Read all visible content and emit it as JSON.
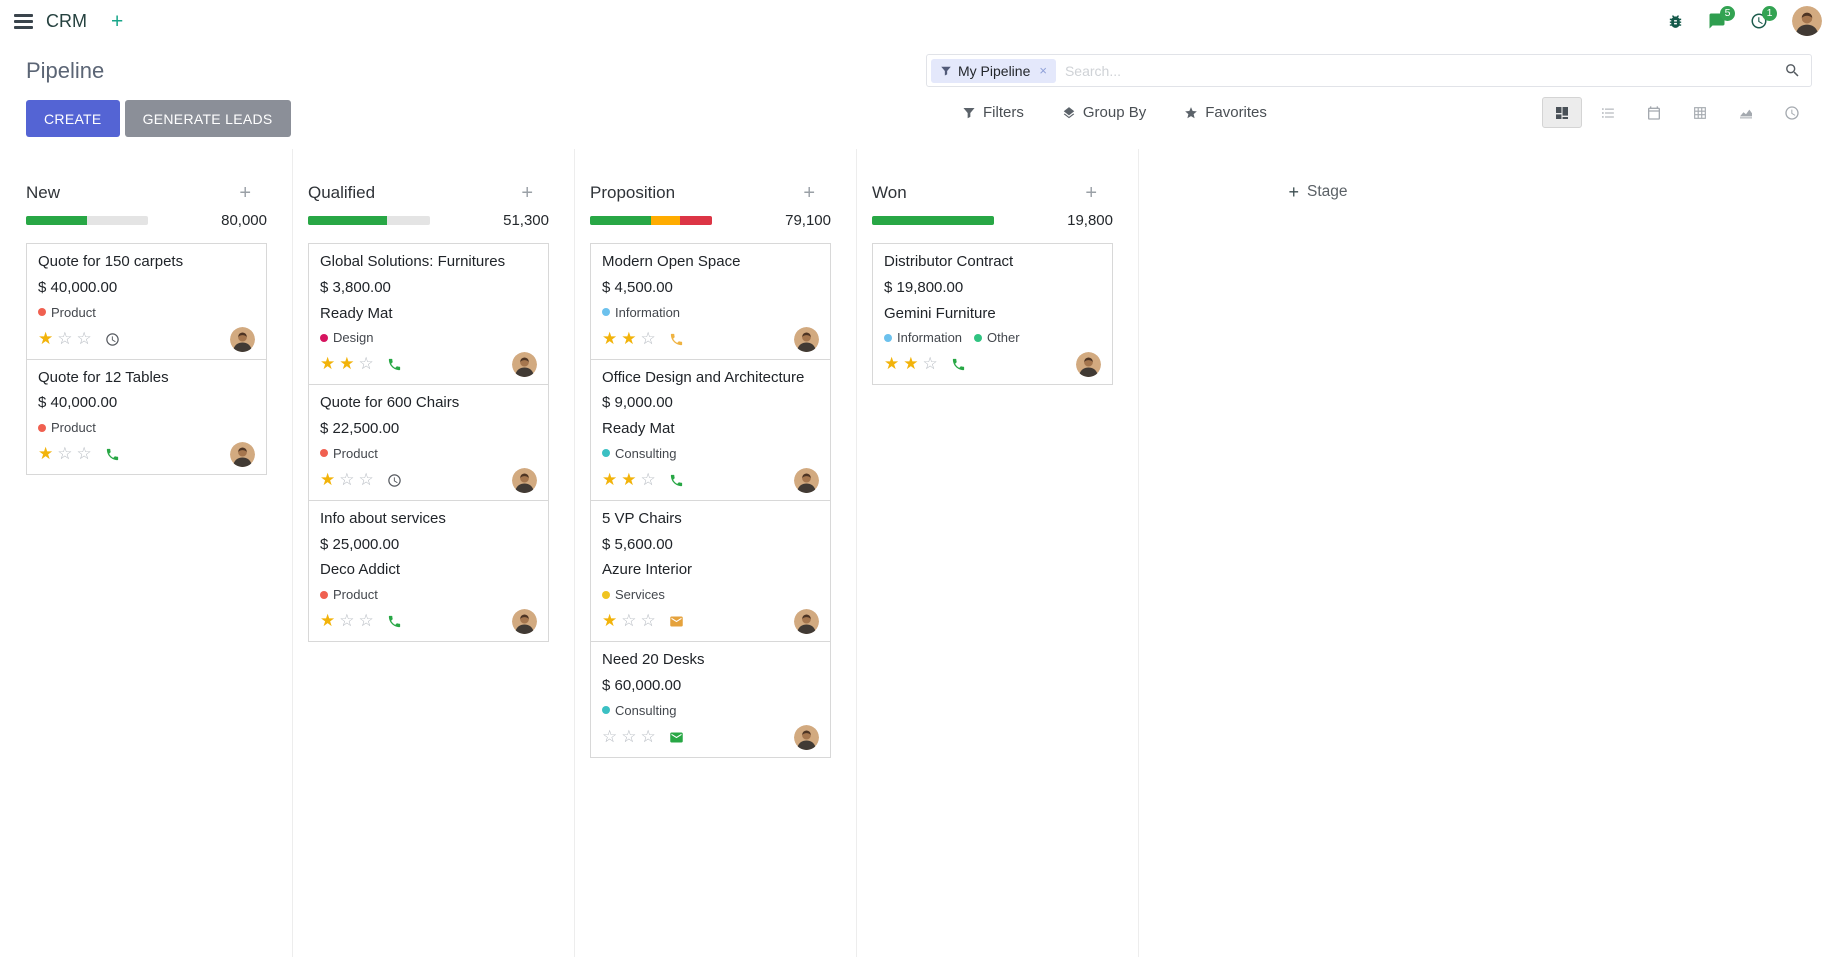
{
  "colors": {
    "primary": "#5464d4",
    "secondary_btn": "#8b8f98",
    "success": "#28a745",
    "star_gold": "#f2b30a",
    "badge_green": "#33a352",
    "facet_bg": "#e4e8fb"
  },
  "app": {
    "name": "CRM"
  },
  "navbar": {
    "messages_badge": "5",
    "activities_badge": "1"
  },
  "control_panel": {
    "title": "Pipeline",
    "create_button": "CREATE",
    "generate_leads_button": "GENERATE LEADS",
    "search": {
      "facet": "My Pipeline",
      "placeholder": "Search...",
      "remove_facet": "×"
    },
    "menus": [
      {
        "id": "filters",
        "label": "Filters",
        "icon": "filter"
      },
      {
        "id": "group_by",
        "label": "Group By",
        "icon": "layers"
      },
      {
        "id": "favorites",
        "label": "Favorites",
        "icon": "star"
      }
    ],
    "view_switcher": [
      {
        "id": "kanban",
        "active": true
      },
      {
        "id": "list",
        "active": false
      },
      {
        "id": "calendar",
        "active": false
      },
      {
        "id": "pivot",
        "active": false
      },
      {
        "id": "graph",
        "active": false
      },
      {
        "id": "activity",
        "active": false
      }
    ]
  },
  "kanban": {
    "add_stage": "Stage",
    "columns": [
      {
        "name": "New",
        "total": "80,000",
        "progress": [
          {
            "color": "#28a745",
            "pct": 50
          }
        ],
        "cards": [
          {
            "title": "Quote for 150 carpets",
            "amount": "$ 40,000.00",
            "partner": null,
            "tags": [
              {
                "label": "Product",
                "color": "#f06050"
              }
            ],
            "stars": 1,
            "activity": {
              "icon": "clock",
              "color": "#55595f"
            }
          },
          {
            "title": "Quote for 12 Tables",
            "amount": "$ 40,000.00",
            "partner": null,
            "tags": [
              {
                "label": "Product",
                "color": "#f06050"
              }
            ],
            "stars": 1,
            "activity": {
              "icon": "phone",
              "color": "#28a745"
            }
          }
        ]
      },
      {
        "name": "Qualified",
        "total": "51,300",
        "progress": [
          {
            "color": "#28a745",
            "pct": 65
          }
        ],
        "cards": [
          {
            "title": "Global Solutions: Furnitures",
            "amount": "$ 3,800.00",
            "partner": "Ready Mat",
            "tags": [
              {
                "label": "Design",
                "color": "#d6145f"
              }
            ],
            "stars": 2,
            "activity": {
              "icon": "phone",
              "color": "#28a745"
            }
          },
          {
            "title": "Quote for 600 Chairs",
            "amount": "$ 22,500.00",
            "partner": null,
            "tags": [
              {
                "label": "Product",
                "color": "#f06050"
              }
            ],
            "stars": 1,
            "activity": {
              "icon": "clock",
              "color": "#55595f"
            }
          },
          {
            "title": "Info about services",
            "amount": "$ 25,000.00",
            "partner": "Deco Addict",
            "tags": [
              {
                "label": "Product",
                "color": "#f06050"
              }
            ],
            "stars": 1,
            "activity": {
              "icon": "phone",
              "color": "#28a745"
            }
          }
        ]
      },
      {
        "name": "Proposition",
        "total": "79,100",
        "progress": [
          {
            "color": "#28a745",
            "pct": 50
          },
          {
            "color": "#ffac00",
            "pct": 24
          },
          {
            "color": "#dc3545",
            "pct": 26
          }
        ],
        "cards": [
          {
            "title": "Modern Open Space",
            "amount": "$ 4,500.00",
            "partner": null,
            "tags": [
              {
                "label": "Information",
                "color": "#6cc1ed"
              }
            ],
            "stars": 2,
            "activity": {
              "icon": "phone",
              "color": "#efb342"
            }
          },
          {
            "title": "Office Design and Architecture",
            "amount": "$ 9,000.00",
            "partner": "Ready Mat",
            "tags": [
              {
                "label": "Consulting",
                "color": "#3bc0c3"
              }
            ],
            "stars": 2,
            "activity": {
              "icon": "phone",
              "color": "#28a745"
            }
          },
          {
            "title": "5 VP Chairs",
            "amount": "$ 5,600.00",
            "partner": "Azure Interior",
            "tags": [
              {
                "label": "Services",
                "color": "#f0c420"
              }
            ],
            "stars": 1,
            "activity": {
              "icon": "envelope",
              "color": "#e5a23c"
            }
          },
          {
            "title": "Need 20 Desks",
            "amount": "$ 60,000.00",
            "partner": null,
            "tags": [
              {
                "label": "Consulting",
                "color": "#3bc0c3"
              }
            ],
            "stars": 0,
            "activity": {
              "icon": "envelope",
              "color": "#28a745"
            }
          }
        ]
      },
      {
        "name": "Won",
        "total": "19,800",
        "progress": [
          {
            "color": "#28a745",
            "pct": 100
          }
        ],
        "cards": [
          {
            "title": "Distributor Contract",
            "amount": "$ 19,800.00",
            "partner": "Gemini Furniture",
            "tags": [
              {
                "label": "Information",
                "color": "#6cc1ed"
              },
              {
                "label": "Other",
                "color": "#30c381"
              }
            ],
            "stars": 2,
            "activity": {
              "icon": "phone",
              "color": "#28a745"
            }
          }
        ]
      }
    ]
  }
}
